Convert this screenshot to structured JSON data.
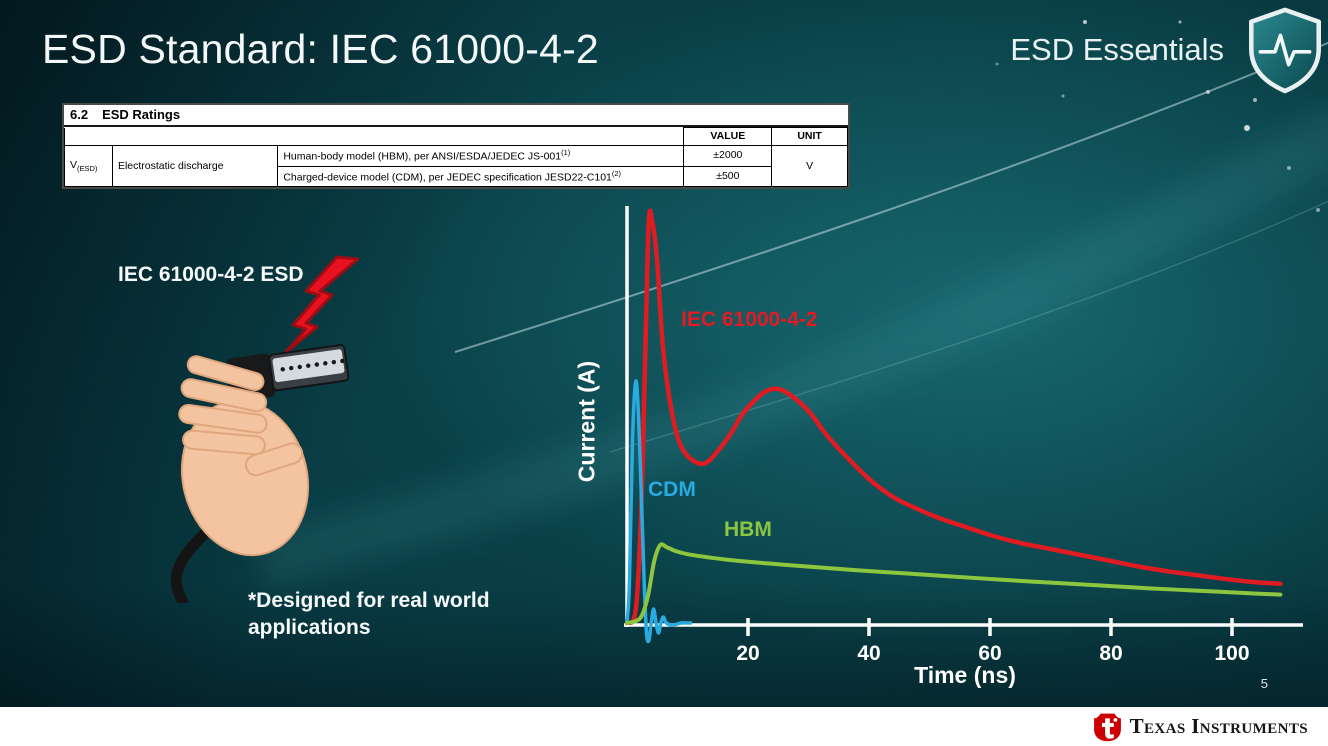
{
  "slide": {
    "title": "ESD Standard: IEC 61000-4-2",
    "brand": "ESD Essentials",
    "page_number": "5",
    "footer_logo_text": "Texas Instruments"
  },
  "colors": {
    "ti_red": "#cc0000",
    "lightning_red": "#e8111f",
    "shield_teal": "#15666d",
    "background_teal": "#0d4a52"
  },
  "ratings_table": {
    "section_number": "6.2",
    "section_title": "ESD Ratings",
    "columns": {
      "value": "VALUE",
      "unit": "UNIT"
    },
    "param_symbol": "V",
    "param_symbol_sub": "(ESD)",
    "param_name": "Electrostatic discharge",
    "rows": [
      {
        "desc": "Human-body model (HBM), per ANSI/ESDA/JEDEC JS-001",
        "sup": "(1)",
        "value": "±2000"
      },
      {
        "desc": "Charged-device model (CDM), per JEDEC specification JESD22-C101",
        "sup": "(2)",
        "value": "±500"
      }
    ],
    "unit": "V"
  },
  "illustration": {
    "caption": "IEC 61000-4-2 ESD",
    "note_line1": "*Designed for real world",
    "note_line2": "applications"
  },
  "chart_data": {
    "type": "line",
    "title": "",
    "xlabel": "Time (ns)",
    "ylabel": "Current (A)",
    "x_ticks": [
      20,
      40,
      60,
      80,
      100
    ],
    "xlim": [
      0,
      110
    ],
    "ylim": [
      0,
      1
    ],
    "y_note": "y axis unlabeled; amplitudes normalized to IEC 61000-4-2 first peak",
    "grid": false,
    "legend_position": "inline-labels",
    "series": [
      {
        "name": "IEC 61000-4-2",
        "color": "#e11b22",
        "points": [
          [
            0,
            0
          ],
          [
            1.5,
            0.04
          ],
          [
            2.5,
            0.35
          ],
          [
            3.5,
            0.97
          ],
          [
            4.2,
            1.0
          ],
          [
            5,
            0.9
          ],
          [
            6,
            0.68
          ],
          [
            7.5,
            0.52
          ],
          [
            9,
            0.44
          ],
          [
            11,
            0.405
          ],
          [
            13,
            0.4
          ],
          [
            15,
            0.43
          ],
          [
            17,
            0.47
          ],
          [
            19,
            0.52
          ],
          [
            21,
            0.555
          ],
          [
            23,
            0.58
          ],
          [
            25,
            0.585
          ],
          [
            27,
            0.57
          ],
          [
            30,
            0.53
          ],
          [
            33,
            0.47
          ],
          [
            36,
            0.42
          ],
          [
            40,
            0.36
          ],
          [
            44,
            0.315
          ],
          [
            48,
            0.285
          ],
          [
            52,
            0.26
          ],
          [
            56,
            0.24
          ],
          [
            60,
            0.22
          ],
          [
            65,
            0.2
          ],
          [
            70,
            0.185
          ],
          [
            75,
            0.17
          ],
          [
            80,
            0.155
          ],
          [
            85,
            0.14
          ],
          [
            90,
            0.128
          ],
          [
            95,
            0.118
          ],
          [
            100,
            0.108
          ],
          [
            104,
            0.102
          ],
          [
            108,
            0.098
          ]
        ]
      },
      {
        "name": "CDM",
        "color": "#29abe2",
        "points": [
          [
            0,
            0
          ],
          [
            0.4,
            0.1
          ],
          [
            0.9,
            0.45
          ],
          [
            1.4,
            0.6
          ],
          [
            1.8,
            0.55
          ],
          [
            2.3,
            0.35
          ],
          [
            2.8,
            0.12
          ],
          [
            3.2,
            -0.02
          ],
          [
            3.6,
            -0.045
          ],
          [
            4.0,
            0.0
          ],
          [
            4.4,
            0.035
          ],
          [
            4.8,
            0.0
          ],
          [
            5.2,
            -0.025
          ],
          [
            5.6,
            0.0
          ],
          [
            6.0,
            0.015
          ],
          [
            6.5,
            0.0
          ],
          [
            7.5,
            -0.005
          ],
          [
            9,
            0.0
          ],
          [
            10.5,
            0.0
          ]
        ]
      },
      {
        "name": "HBM",
        "color": "#8cc63e",
        "points": [
          [
            0,
            0
          ],
          [
            1.5,
            0.005
          ],
          [
            2.5,
            0.02
          ],
          [
            3.5,
            0.07
          ],
          [
            4.5,
            0.155
          ],
          [
            5.5,
            0.195
          ],
          [
            6.5,
            0.19
          ],
          [
            8,
            0.18
          ],
          [
            10,
            0.172
          ],
          [
            14,
            0.163
          ],
          [
            18,
            0.156
          ],
          [
            24,
            0.148
          ],
          [
            30,
            0.141
          ],
          [
            38,
            0.132
          ],
          [
            46,
            0.124
          ],
          [
            54,
            0.116
          ],
          [
            62,
            0.108
          ],
          [
            70,
            0.101
          ],
          [
            78,
            0.094
          ],
          [
            86,
            0.087
          ],
          [
            94,
            0.081
          ],
          [
            102,
            0.075
          ],
          [
            108,
            0.071
          ]
        ]
      }
    ]
  }
}
